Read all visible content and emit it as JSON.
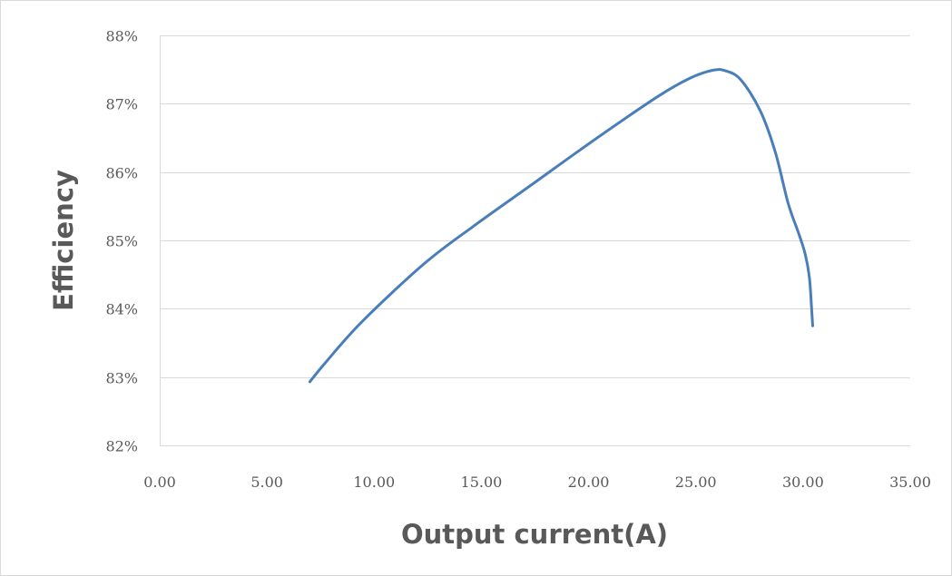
{
  "chart_data": {
    "type": "line",
    "title": "",
    "xlabel": "Output current(A)",
    "ylabel": "Efficiency",
    "xlim": [
      0,
      35
    ],
    "ylim": [
      82,
      88
    ],
    "x_ticks": [
      0,
      5,
      10,
      15,
      20,
      25,
      30,
      35
    ],
    "x_tick_labels": [
      "0.00",
      "5.00",
      "10.00",
      "15.00",
      "20.00",
      "25.00",
      "30.00",
      "35.00"
    ],
    "y_ticks": [
      82,
      83,
      84,
      85,
      86,
      87,
      88
    ],
    "y_tick_labels": [
      "82%",
      "83%",
      "84%",
      "85%",
      "86%",
      "87%",
      "88%"
    ],
    "grid": true,
    "legend": "none",
    "series": [
      {
        "color": "#4a7ebb",
        "x": [
          7.0,
          7.7,
          9.4,
          12.3,
          14.6,
          17.5,
          20.4,
          23.2,
          24.7,
          25.8,
          26.4,
          27.1,
          28.0,
          28.7,
          29.3,
          29.8,
          30.1,
          30.3,
          30.4,
          30.45
        ],
        "y": [
          82.93,
          83.2,
          83.8,
          84.65,
          85.2,
          85.85,
          86.5,
          87.1,
          87.37,
          87.49,
          87.48,
          87.35,
          86.9,
          86.3,
          85.55,
          85.1,
          84.8,
          84.45,
          84.0,
          83.75
        ]
      }
    ]
  }
}
